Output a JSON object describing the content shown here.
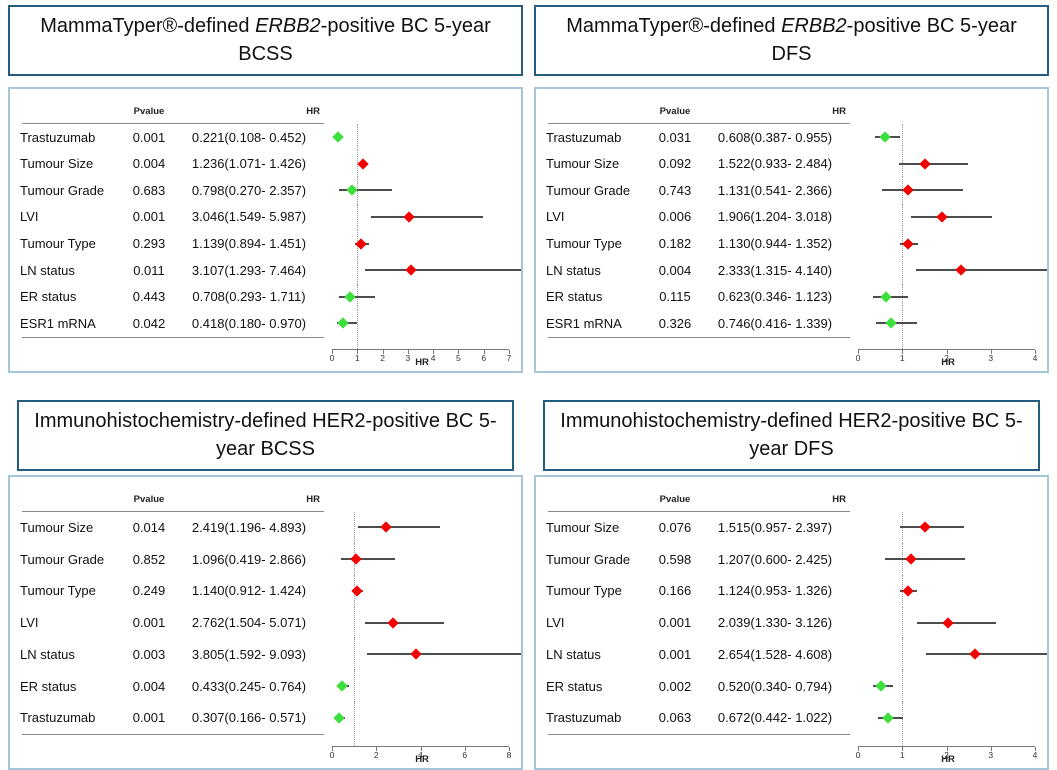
{
  "colors": {
    "red_marker": "#f40000",
    "green_marker": "#3ce03c",
    "ci_line": "#4d4d4d",
    "reference_line": "#9a9a9a",
    "title_border": "#235e7e",
    "panel_border": "#a5c6d8"
  },
  "chart_data": [
    {
      "type": "forest",
      "title": {
        "pre": "MammaTyper®-defined ",
        "italic": "ERBB2",
        "post": "-positive BC 5-year BCSS"
      },
      "col_headers": {
        "pvalue": "Pvalue",
        "hr": "HR"
      },
      "xlabel": "HR",
      "axis": {
        "min": 0,
        "max": 7,
        "ticks": [
          0,
          1,
          2,
          3,
          4,
          5,
          6,
          7
        ],
        "ref_line": 1
      },
      "rows": [
        {
          "label": "Trastuzumab",
          "pvalue": "0.001",
          "hr_ci": "0.221(0.108- 0.452)",
          "hr": 0.221,
          "ci_low": 0.108,
          "ci_high": 0.452,
          "marker": "green"
        },
        {
          "label": "Tumour Size",
          "pvalue": "0.004",
          "hr_ci": "1.236(1.071- 1.426)",
          "hr": 1.236,
          "ci_low": 1.071,
          "ci_high": 1.426,
          "marker": "red"
        },
        {
          "label": "Tumour Grade",
          "pvalue": "0.683",
          "hr_ci": "0.798(0.270- 2.357)",
          "hr": 0.798,
          "ci_low": 0.27,
          "ci_high": 2.357,
          "marker": "green"
        },
        {
          "label": "LVI",
          "pvalue": "0.001",
          "hr_ci": "3.046(1.549- 5.987)",
          "hr": 3.046,
          "ci_low": 1.549,
          "ci_high": 5.987,
          "marker": "red"
        },
        {
          "label": "Tumour Type",
          "pvalue": "0.293",
          "hr_ci": "1.139(0.894- 1.451)",
          "hr": 1.139,
          "ci_low": 0.894,
          "ci_high": 1.451,
          "marker": "red"
        },
        {
          "label": "LN status",
          "pvalue": "0.011",
          "hr_ci": "3.107(1.293- 7.464)",
          "hr": 3.107,
          "ci_low": 1.293,
          "ci_high": 7.464,
          "marker": "red"
        },
        {
          "label": "ER status",
          "pvalue": "0.443",
          "hr_ci": "0.708(0.293- 1.711)",
          "hr": 0.708,
          "ci_low": 0.293,
          "ci_high": 1.711,
          "marker": "green"
        },
        {
          "label": "ESR1 mRNA",
          "pvalue": "0.042",
          "hr_ci": "0.418(0.180- 0.970)",
          "hr": 0.418,
          "ci_low": 0.18,
          "ci_high": 0.97,
          "marker": "green"
        }
      ]
    },
    {
      "type": "forest",
      "title": {
        "pre": "MammaTyper®-defined ",
        "italic": "ERBB2",
        "post": "-positive BC 5-year DFS"
      },
      "col_headers": {
        "pvalue": "Pvalue",
        "hr": "HR"
      },
      "xlabel": "HR",
      "axis": {
        "min": 0,
        "max": 4,
        "ticks": [
          0,
          1,
          2,
          3,
          4
        ],
        "ref_line": 1
      },
      "rows": [
        {
          "label": "Trastuzumab",
          "pvalue": "0.031",
          "hr_ci": "0.608(0.387- 0.955)",
          "hr": 0.608,
          "ci_low": 0.387,
          "ci_high": 0.955,
          "marker": "green"
        },
        {
          "label": "Tumour Size",
          "pvalue": "0.092",
          "hr_ci": "1.522(0.933- 2.484)",
          "hr": 1.522,
          "ci_low": 0.933,
          "ci_high": 2.484,
          "marker": "red"
        },
        {
          "label": "Tumour Grade",
          "pvalue": "0.743",
          "hr_ci": "1.131(0.541- 2.366)",
          "hr": 1.131,
          "ci_low": 0.541,
          "ci_high": 2.366,
          "marker": "red"
        },
        {
          "label": "LVI",
          "pvalue": "0.006",
          "hr_ci": "1.906(1.204- 3.018)",
          "hr": 1.906,
          "ci_low": 1.204,
          "ci_high": 3.018,
          "marker": "red"
        },
        {
          "label": "Tumour Type",
          "pvalue": "0.182",
          "hr_ci": "1.130(0.944- 1.352)",
          "hr": 1.13,
          "ci_low": 0.944,
          "ci_high": 1.352,
          "marker": "red"
        },
        {
          "label": "LN status",
          "pvalue": "0.004",
          "hr_ci": "2.333(1.315- 4.140)",
          "hr": 2.333,
          "ci_low": 1.315,
          "ci_high": 4.14,
          "marker": "red"
        },
        {
          "label": "ER status",
          "pvalue": "0.115",
          "hr_ci": "0.623(0.346- 1.123)",
          "hr": 0.623,
          "ci_low": 0.346,
          "ci_high": 1.123,
          "marker": "green"
        },
        {
          "label": "ESR1 mRNA",
          "pvalue": "0.326",
          "hr_ci": "0.746(0.416- 1.339)",
          "hr": 0.746,
          "ci_low": 0.416,
          "ci_high": 1.339,
          "marker": "green"
        }
      ]
    },
    {
      "type": "forest",
      "title": {
        "pre": "Immunohistochemistry-defined HER2-positive BC 5-year BCSS",
        "italic": "",
        "post": ""
      },
      "col_headers": {
        "pvalue": "Pvalue",
        "hr": "HR"
      },
      "xlabel": "HR",
      "axis": {
        "min": 0,
        "max": 8,
        "ticks": [
          0,
          2,
          4,
          6,
          8
        ],
        "ref_line": 1
      },
      "rows": [
        {
          "label": "Tumour Size",
          "pvalue": "0.014",
          "hr_ci": "2.419(1.196- 4.893)",
          "hr": 2.419,
          "ci_low": 1.196,
          "ci_high": 4.893,
          "marker": "red"
        },
        {
          "label": "Tumour Grade",
          "pvalue": "0.852",
          "hr_ci": "1.096(0.419- 2.866)",
          "hr": 1.096,
          "ci_low": 0.419,
          "ci_high": 2.866,
          "marker": "red"
        },
        {
          "label": "Tumour Type",
          "pvalue": "0.249",
          "hr_ci": "1.140(0.912- 1.424)",
          "hr": 1.14,
          "ci_low": 0.912,
          "ci_high": 1.424,
          "marker": "red"
        },
        {
          "label": "LVI",
          "pvalue": "0.001",
          "hr_ci": "2.762(1.504- 5.071)",
          "hr": 2.762,
          "ci_low": 1.504,
          "ci_high": 5.071,
          "marker": "red"
        },
        {
          "label": "LN status",
          "pvalue": "0.003",
          "hr_ci": "3.805(1.592- 9.093)",
          "hr": 3.805,
          "ci_low": 1.592,
          "ci_high": 9.093,
          "marker": "red"
        },
        {
          "label": "ER status",
          "pvalue": "0.004",
          "hr_ci": "0.433(0.245- 0.764)",
          "hr": 0.433,
          "ci_low": 0.245,
          "ci_high": 0.764,
          "marker": "green"
        },
        {
          "label": "Trastuzumab",
          "pvalue": "0.001",
          "hr_ci": "0.307(0.166- 0.571)",
          "hr": 0.307,
          "ci_low": 0.166,
          "ci_high": 0.571,
          "marker": "green"
        }
      ]
    },
    {
      "type": "forest",
      "title": {
        "pre": "Immunohistochemistry-defined HER2-positive BC 5-year DFS",
        "italic": "",
        "post": ""
      },
      "col_headers": {
        "pvalue": "Pvalue",
        "hr": "HR"
      },
      "xlabel": "HR",
      "axis": {
        "min": 0,
        "max": 4,
        "ticks": [
          0,
          1,
          2,
          3,
          4
        ],
        "ref_line": 1
      },
      "rows": [
        {
          "label": "Tumour Size",
          "pvalue": "0.076",
          "hr_ci": "1.515(0.957- 2.397)",
          "hr": 1.515,
          "ci_low": 0.957,
          "ci_high": 2.397,
          "marker": "red"
        },
        {
          "label": "Tumour Grade",
          "pvalue": "0.598",
          "hr_ci": "1.207(0.600- 2.425)",
          "hr": 1.207,
          "ci_low": 0.6,
          "ci_high": 2.425,
          "marker": "red"
        },
        {
          "label": "Tumour Type",
          "pvalue": "0.166",
          "hr_ci": "1.124(0.953- 1.326)",
          "hr": 1.124,
          "ci_low": 0.953,
          "ci_high": 1.326,
          "marker": "red"
        },
        {
          "label": "LVI",
          "pvalue": "0.001",
          "hr_ci": "2.039(1.330- 3.126)",
          "hr": 2.039,
          "ci_low": 1.33,
          "ci_high": 3.126,
          "marker": "red"
        },
        {
          "label": "LN status",
          "pvalue": "0.001",
          "hr_ci": "2.654(1.528- 4.608)",
          "hr": 2.654,
          "ci_low": 1.528,
          "ci_high": 4.608,
          "marker": "red"
        },
        {
          "label": "ER status",
          "pvalue": "0.002",
          "hr_ci": "0.520(0.340- 0.794)",
          "hr": 0.52,
          "ci_low": 0.34,
          "ci_high": 0.794,
          "marker": "green"
        },
        {
          "label": "Trastuzumab",
          "pvalue": "0.063",
          "hr_ci": "0.672(0.442- 1.022)",
          "hr": 0.672,
          "ci_low": 0.442,
          "ci_high": 1.022,
          "marker": "green"
        }
      ]
    }
  ]
}
